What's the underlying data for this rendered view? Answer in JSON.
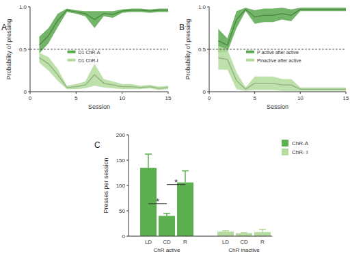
{
  "chart_data": [
    {
      "type": "line",
      "panel_label": "A",
      "x": [
        1,
        2,
        3,
        4,
        5,
        6,
        7,
        8,
        9,
        10,
        11,
        12,
        13,
        14,
        15
      ],
      "xlim": [
        0,
        15
      ],
      "xticks": [
        0,
        5,
        10,
        15
      ],
      "ylim": [
        0,
        1
      ],
      "yticks": [
        0,
        0.5,
        {
          "value": 1,
          "label": "1.0"
        }
      ],
      "x_label": "Session",
      "y_label": "Probability of pressing",
      "hline": 0.5,
      "legend": "center left",
      "series": [
        {
          "name": "D1 ChR-A",
          "color": "#5aa84e",
          "values": [
            0.55,
            0.66,
            0.84,
            0.96,
            0.94,
            0.92,
            0.85,
            0.92,
            0.91,
            0.95,
            0.96,
            0.96,
            0.95,
            0.96,
            0.96
          ],
          "error": [
            0.1,
            0.09,
            0.08,
            0.02,
            0.02,
            0.03,
            0.1,
            0.03,
            0.04,
            0.02,
            0.02,
            0.02,
            0.02,
            0.02,
            0.02
          ]
        },
        {
          "name": "D1 ChR-I",
          "color": "#b3dc9c",
          "values": [
            0.4,
            0.33,
            0.2,
            0.05,
            0.06,
            0.08,
            0.2,
            0.1,
            0.08,
            0.06,
            0.06,
            0.05,
            0.06,
            0.04,
            0.05
          ],
          "error": [
            0.06,
            0.08,
            0.07,
            0.02,
            0.03,
            0.04,
            0.13,
            0.05,
            0.04,
            0.03,
            0.03,
            0.02,
            0.02,
            0.02,
            0.02
          ]
        }
      ]
    },
    {
      "type": "line",
      "panel_label": "B",
      "x": [
        1,
        2,
        3,
        4,
        5,
        6,
        7,
        8,
        9,
        10,
        11,
        12,
        13,
        14,
        15
      ],
      "xlim": [
        0,
        15
      ],
      "xticks": [
        0,
        5,
        10,
        15
      ],
      "ylim": [
        0,
        1
      ],
      "yticks": [
        0,
        0.5,
        {
          "value": 1,
          "label": "1.0"
        }
      ],
      "x_label": "Session",
      "y_label": "Probability of pressing",
      "hline": 0.5,
      "legend": "center left",
      "series": [
        {
          "name": "P active after active",
          "color": "#5aa84e",
          "values": [
            0.6,
            0.55,
            0.85,
            0.97,
            0.88,
            0.9,
            0.9,
            0.92,
            0.9,
            0.97,
            0.97,
            0.97,
            0.97,
            0.97,
            0.97
          ],
          "error": [
            0.14,
            0.08,
            0.1,
            0.02,
            0.08,
            0.08,
            0.08,
            0.07,
            0.07,
            0.02,
            0.02,
            0.02,
            0.02,
            0.02,
            0.02
          ]
        },
        {
          "name": "Pinactive after active",
          "color": "#b3dc9c",
          "values": [
            0.4,
            0.38,
            0.13,
            0.03,
            0.1,
            0.1,
            0.1,
            0.08,
            0.08,
            0.03,
            0.03,
            0.03,
            0.03,
            0.03,
            0.03
          ],
          "error": [
            0.14,
            0.12,
            0.1,
            0.02,
            0.08,
            0.08,
            0.08,
            0.07,
            0.07,
            0.02,
            0.02,
            0.02,
            0.02,
            0.02,
            0.02
          ]
        }
      ]
    },
    {
      "type": "bar",
      "panel_label": "C",
      "categories": [
        "LD",
        "CD",
        "R",
        "LD",
        "CD",
        "R"
      ],
      "group_labels": [
        "ChR active",
        "ChR inactive"
      ],
      "ylim": [
        0,
        200
      ],
      "yticks": [
        0,
        50,
        100,
        150,
        200
      ],
      "y_label": "Presses per session",
      "legend": "upper right",
      "series": [
        {
          "name": "ChR-A",
          "color": "#5cb050",
          "values": [
            135,
            40,
            106,
            null,
            null,
            null
          ],
          "error": [
            27,
            5,
            23,
            null,
            null,
            null
          ]
        },
        {
          "name": "ChR- I",
          "color": "#b5dca0",
          "values": [
            null,
            null,
            null,
            9,
            6,
            8
          ],
          "error": [
            null,
            null,
            null,
            2,
            1,
            5
          ]
        }
      ],
      "annotations": [
        {
          "text": "*",
          "between": [
            0,
            1
          ]
        },
        {
          "text": "*",
          "between": [
            1,
            2
          ]
        }
      ]
    }
  ]
}
